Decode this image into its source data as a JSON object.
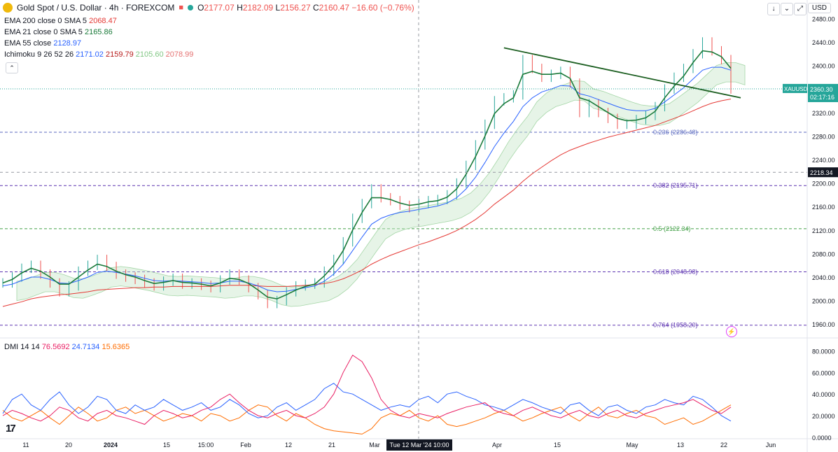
{
  "header": {
    "symbol": "Gold Spot / U.S. Dollar · 4h · FOREXCOM",
    "o_label": "O",
    "o": "2177.07",
    "h_label": "H",
    "h": "2182.09",
    "l_label": "L",
    "l": "2156.27",
    "c_label": "C",
    "c": "2160.47",
    "change": "−16.60 (−0.76%)",
    "currency": "USD"
  },
  "legend": {
    "ema200": {
      "label": "EMA 200 close 0 SMA 5",
      "value": "2068.47",
      "color": "#e53935"
    },
    "ema21": {
      "label": "EMA 21 close 0 SMA 5",
      "value": "2165.86",
      "color": "#1b7a3a"
    },
    "ema55": {
      "label": "EMA 55 close",
      "value": "2128.97",
      "color": "#2962ff"
    },
    "ichimoku": {
      "label": "Ichimoku 9 26 52 26",
      "v1": "2171.02",
      "v2": "2159.79",
      "v3": "2105.60",
      "v4": "2078.99",
      "c1": "#2962ff",
      "c2": "#b71c1c",
      "c3": "#81c784",
      "c4": "#e57373"
    },
    "dmi": {
      "label": "DMI 14 14",
      "v1": "76.5692",
      "v2": "24.7134",
      "v3": "15.6365",
      "c1": "#e91e63",
      "c2": "#2962ff",
      "c3": "#ff6d00"
    }
  },
  "price_axis": {
    "ticks": [
      "2480.00",
      "2440.00",
      "2400.00",
      "2360.00",
      "2320.00",
      "2280.00",
      "2240.00",
      "2200.00",
      "2160.00",
      "2120.00",
      "2080.00",
      "2040.00",
      "2000.00",
      "1960.00"
    ],
    "current_label": "XAUUSD",
    "current_price": "2360.30",
    "countdown": "02:17:16",
    "crosshair_price": "2218.34"
  },
  "dmi_axis": {
    "ticks": [
      "80.0000",
      "60.0000",
      "40.0000",
      "20.0000",
      "0.0000"
    ]
  },
  "time_axis": {
    "labels": [
      "11",
      "20",
      "2024",
      "15",
      "15:00",
      "Feb",
      "12",
      "21",
      "Mar",
      "Apr",
      "15",
      "May",
      "13",
      "22",
      "Jun"
    ],
    "crosshair_label": "Tue 12 Mar '24  10:00"
  },
  "fibonacci": [
    {
      "label": "0.236 (2286.48)",
      "price": 2286.48,
      "color": "#5c6bc0"
    },
    {
      "label": "0.382 (2195.71)",
      "price": 2195.71,
      "color": "#5e35b1"
    },
    {
      "label": "0.5 (2122.34)",
      "price": 2122.34,
      "color": "#43a047"
    },
    {
      "label": "0.618 (2048.98)",
      "price": 2048.98,
      "color": "#5e35b1"
    },
    {
      "label": "0.764 (1958.20)",
      "price": 1958.2,
      "color": "#5e35b1"
    }
  ],
  "chart_data": {
    "type": "line",
    "price_pane": {
      "ylim": [
        1940,
        2490
      ],
      "close": [
        2030,
        2040,
        2055,
        2060,
        2045,
        2030,
        2015,
        2025,
        2050,
        2060,
        2070,
        2058,
        2045,
        2040,
        2036,
        2030,
        2025,
        2033,
        2038,
        2028,
        2030,
        2026,
        2022,
        2035,
        2045,
        2035,
        2022,
        2010,
        1995,
        2000,
        2015,
        2025,
        2028,
        2030,
        2050,
        2070,
        2100,
        2140,
        2165,
        2190,
        2175,
        2170,
        2162,
        2158,
        2165,
        2170,
        2172,
        2180,
        2200,
        2230,
        2265,
        2300,
        2340,
        2345,
        2350,
        2410,
        2395,
        2380,
        2385,
        2390,
        2370,
        2320,
        2335,
        2320,
        2310,
        2300,
        2300,
        2308,
        2315,
        2330,
        2360,
        2380,
        2395,
        2420,
        2440,
        2425,
        2410,
        2360
      ],
      "ema21": [
        2030,
        2036,
        2047,
        2055,
        2050,
        2040,
        2028,
        2028,
        2040,
        2052,
        2062,
        2058,
        2050,
        2044,
        2040,
        2034,
        2029,
        2031,
        2034,
        2031,
        2030,
        2028,
        2025,
        2030,
        2038,
        2036,
        2029,
        2018,
        2006,
        2003,
        2010,
        2018,
        2024,
        2028,
        2042,
        2060,
        2085,
        2120,
        2150,
        2175,
        2175,
        2172,
        2166,
        2162,
        2164,
        2168,
        2170,
        2176,
        2190,
        2215,
        2245,
        2280,
        2318,
        2335,
        2345,
        2385,
        2390,
        2385,
        2385,
        2387,
        2378,
        2345,
        2340,
        2330,
        2320,
        2310,
        2306,
        2307,
        2311,
        2322,
        2345,
        2365,
        2382,
        2405,
        2425,
        2423,
        2415,
        2395
      ],
      "ema55": [
        2025,
        2028,
        2034,
        2040,
        2040,
        2036,
        2030,
        2029,
        2034,
        2040,
        2048,
        2050,
        2048,
        2045,
        2042,
        2038,
        2034,
        2033,
        2034,
        2033,
        2032,
        2031,
        2029,
        2030,
        2033,
        2033,
        2030,
        2025,
        2018,
        2015,
        2016,
        2019,
        2022,
        2025,
        2033,
        2045,
        2062,
        2085,
        2108,
        2130,
        2140,
        2146,
        2150,
        2152,
        2155,
        2158,
        2161,
        2166,
        2175,
        2190,
        2210,
        2235,
        2262,
        2285,
        2305,
        2330,
        2345,
        2355,
        2360,
        2366,
        2365,
        2352,
        2348,
        2342,
        2336,
        2330,
        2325,
        2323,
        2323,
        2327,
        2338,
        2350,
        2362,
        2377,
        2392,
        2397,
        2397,
        2392
      ],
      "ema200": [
        1990,
        1994,
        1998,
        2003,
        2006,
        2008,
        2010,
        2011,
        2013,
        2015,
        2018,
        2019,
        2020,
        2021,
        2022,
        2022,
        2023,
        2023,
        2024,
        2024,
        2024,
        2024,
        2024,
        2025,
        2026,
        2026,
        2026,
        2025,
        2024,
        2024,
        2024,
        2025,
        2026,
        2027,
        2029,
        2032,
        2037,
        2044,
        2052,
        2062,
        2070,
        2077,
        2083,
        2089,
        2095,
        2100,
        2106,
        2112,
        2119,
        2128,
        2138,
        2150,
        2164,
        2176,
        2188,
        2203,
        2216,
        2227,
        2238,
        2248,
        2256,
        2262,
        2268,
        2273,
        2278,
        2282,
        2286,
        2290,
        2294,
        2298,
        2304,
        2310,
        2316,
        2323,
        2330,
        2336,
        2340,
        2343
      ]
    },
    "dmi_pane": {
      "ylim": [
        0,
        90
      ],
      "adx": [
        20,
        25,
        22,
        18,
        15,
        20,
        28,
        25,
        18,
        15,
        22,
        25,
        20,
        18,
        15,
        12,
        20,
        25,
        22,
        18,
        20,
        25,
        28,
        35,
        40,
        32,
        25,
        20,
        18,
        22,
        25,
        20,
        18,
        22,
        28,
        40,
        60,
        76,
        70,
        55,
        35,
        25,
        20,
        18,
        22,
        20,
        18,
        22,
        25,
        28,
        30,
        32,
        25,
        22,
        20,
        25,
        28,
        24,
        20,
        18,
        22,
        25,
        20,
        18,
        22,
        25,
        20,
        18,
        22,
        25,
        28,
        30,
        32,
        35,
        30,
        25,
        22,
        28
      ],
      "di_plus": [
        22,
        35,
        40,
        30,
        25,
        35,
        42,
        30,
        22,
        28,
        38,
        35,
        25,
        22,
        30,
        25,
        28,
        35,
        30,
        25,
        28,
        32,
        25,
        28,
        35,
        30,
        22,
        18,
        20,
        28,
        32,
        25,
        30,
        35,
        45,
        50,
        42,
        40,
        35,
        30,
        25,
        28,
        30,
        28,
        35,
        38,
        32,
        40,
        42,
        38,
        35,
        30,
        28,
        25,
        30,
        35,
        32,
        28,
        25,
        22,
        30,
        32,
        25,
        20,
        28,
        30,
        25,
        22,
        28,
        30,
        35,
        32,
        30,
        38,
        35,
        28,
        20,
        15
      ],
      "di_minus": [
        25,
        18,
        15,
        20,
        25,
        18,
        12,
        20,
        28,
        22,
        15,
        18,
        25,
        28,
        22,
        25,
        20,
        15,
        18,
        22,
        20,
        15,
        22,
        20,
        15,
        18,
        25,
        30,
        28,
        20,
        15,
        22,
        18,
        12,
        8,
        6,
        5,
        4,
        3,
        8,
        18,
        22,
        20,
        25,
        18,
        15,
        20,
        12,
        10,
        12,
        15,
        18,
        22,
        25,
        20,
        15,
        18,
        22,
        25,
        28,
        20,
        15,
        22,
        28,
        20,
        18,
        22,
        25,
        20,
        18,
        12,
        15,
        18,
        12,
        15,
        20,
        25,
        30
      ]
    },
    "trendline": {
      "from": {
        "x_index": 53,
        "price": 2430
      },
      "to": {
        "x_index": 77,
        "price": 2345
      },
      "color": "#1b5e20"
    },
    "series": [
      {
        "name": "EMA 21",
        "color": "#1b7a3a"
      },
      {
        "name": "EMA 55",
        "color": "#2962ff"
      },
      {
        "name": "EMA 200",
        "color": "#e53935"
      }
    ]
  }
}
